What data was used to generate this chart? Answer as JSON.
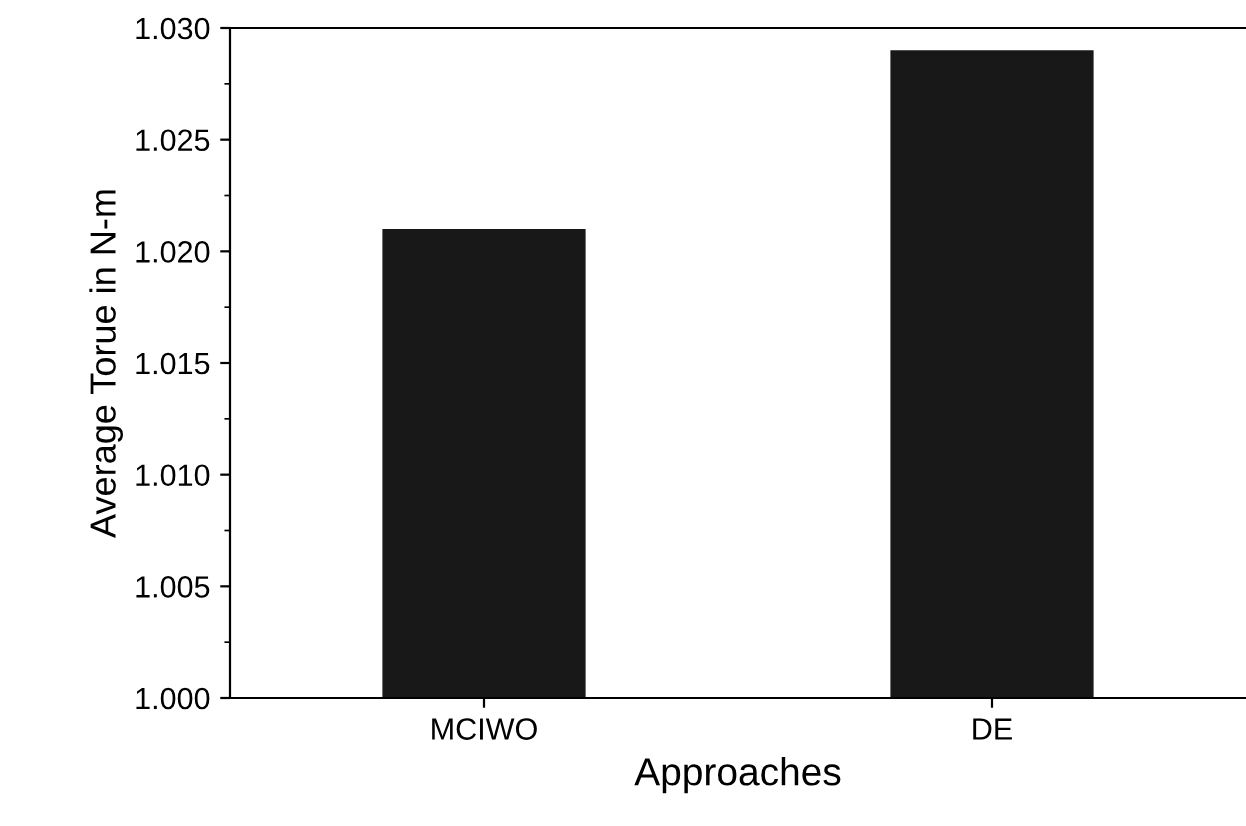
{
  "chart_data": {
    "type": "bar",
    "xlabel": "Approaches",
    "ylabel": "Average Torue in N-m",
    "categories": [
      "MCIWO",
      "DE"
    ],
    "values": [
      1.021,
      1.029
    ],
    "color": "#181818",
    "ylim": [
      1.0,
      1.03
    ],
    "yticks": [
      {
        "value": 1.0,
        "label": "1.000"
      },
      {
        "value": 1.005,
        "label": "1.005"
      },
      {
        "value": 1.01,
        "label": "1.010"
      },
      {
        "value": 1.015,
        "label": "1.015"
      },
      {
        "value": 1.02,
        "label": "1.020"
      },
      {
        "value": 1.025,
        "label": "1.025"
      },
      {
        "value": 1.03,
        "label": "1.030"
      }
    ],
    "grid": false
  }
}
